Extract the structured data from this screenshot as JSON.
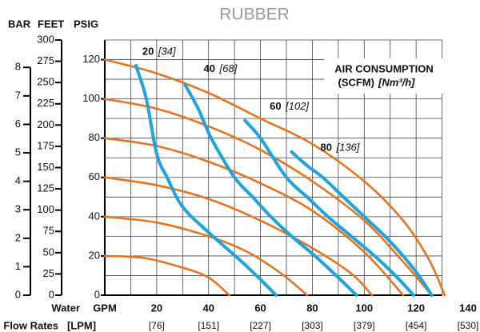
{
  "chart_data": {
    "type": "line",
    "title": "RUBBER",
    "ylabel": "PSIG",
    "ylim": [
      0,
      130
    ],
    "yticks": [
      0,
      20,
      40,
      60,
      80,
      100,
      120
    ],
    "ygrid": [
      0,
      10,
      20,
      30,
      40,
      50,
      60,
      70,
      80,
      90,
      100,
      110,
      120,
      130
    ],
    "bar_axis": {
      "label": "BAR",
      "lim": [
        0,
        8.963
      ],
      "ticks": [
        0,
        1,
        2,
        3,
        4,
        5,
        6,
        7,
        8
      ]
    },
    "feet_axis": {
      "label": "FEET",
      "lim": [
        0,
        300
      ],
      "ticks": [
        0,
        25,
        50,
        75,
        100,
        125,
        150,
        175,
        200,
        225,
        250,
        275,
        300
      ]
    },
    "xlabel": "GPM",
    "x2label": "[LPM]",
    "row_label": [
      "Water",
      "Flow Rates"
    ],
    "xlim": [
      0,
      140
    ],
    "xticks": [
      20,
      40,
      60,
      80,
      100,
      120,
      140
    ],
    "x2ticklabels": [
      "[76]",
      "[151]",
      "[227]",
      "[303]",
      "[379]",
      "[454]",
      "[530]"
    ],
    "xgrid": [
      0,
      10,
      20,
      30,
      40,
      50,
      60,
      70,
      80,
      90,
      100,
      110,
      120,
      130
    ],
    "legend_title": [
      "AIR CONSUMPTION",
      "(SCFM)",
      "[Nm³/h]"
    ],
    "series": [
      {
        "color": "#e8731e",
        "x": [
          0,
          15,
          30,
          40,
          48
        ],
        "values": [
          20,
          19,
          14,
          9,
          0
        ]
      },
      {
        "color": "#e8731e",
        "x": [
          0,
          20,
          40,
          55,
          68,
          78
        ],
        "values": [
          40,
          37,
          30,
          22,
          11,
          0
        ]
      },
      {
        "color": "#e8731e",
        "x": [
          0,
          20,
          40,
          60,
          80,
          95,
          103
        ],
        "values": [
          60,
          56,
          49,
          38,
          24,
          11,
          0
        ]
      },
      {
        "color": "#e8731e",
        "x": [
          0,
          20,
          40,
          60,
          80,
          100,
          115
        ],
        "values": [
          80,
          76,
          68,
          57,
          43,
          22,
          0
        ]
      },
      {
        "color": "#e8731e",
        "x": [
          0,
          20,
          40,
          60,
          80,
          100,
          115,
          126
        ],
        "values": [
          100,
          95,
          86,
          74,
          58,
          38,
          17,
          0
        ]
      },
      {
        "color": "#e8731e",
        "x": [
          0,
          20,
          40,
          60,
          80,
          100,
          115,
          125,
          131
        ],
        "values": [
          120,
          113,
          103,
          90,
          77,
          58,
          38,
          18,
          0
        ]
      },
      {
        "name": "20",
        "lpm": "[34]",
        "color": "#1fa3dd",
        "x": [
          12,
          16,
          20,
          24,
          30,
          40,
          52,
          60,
          66
        ],
        "values": [
          117,
          100,
          72,
          60,
          45,
          32,
          18,
          8,
          0
        ]
      },
      {
        "name": "40",
        "lpm": "[68]",
        "color": "#1fa3dd",
        "x": [
          31,
          36,
          41,
          50,
          57,
          64,
          72,
          81,
          90,
          97
        ],
        "values": [
          107,
          95,
          80,
          60,
          50,
          40,
          30,
          20,
          9,
          0
        ]
      },
      {
        "name": "60",
        "lpm": "[102]",
        "color": "#1fa3dd",
        "x": [
          54,
          60,
          70,
          78,
          86,
          95,
          104,
          112,
          119
        ],
        "values": [
          89,
          80,
          60,
          50,
          40,
          30,
          20,
          10,
          0
        ]
      },
      {
        "name": "80",
        "lpm": "[136]",
        "color": "#1fa3dd",
        "x": [
          72,
          78,
          84,
          92,
          100,
          108,
          115,
          121,
          126
        ],
        "values": [
          73,
          66,
          60,
          50,
          40,
          30,
          20,
          10,
          0
        ]
      }
    ]
  }
}
